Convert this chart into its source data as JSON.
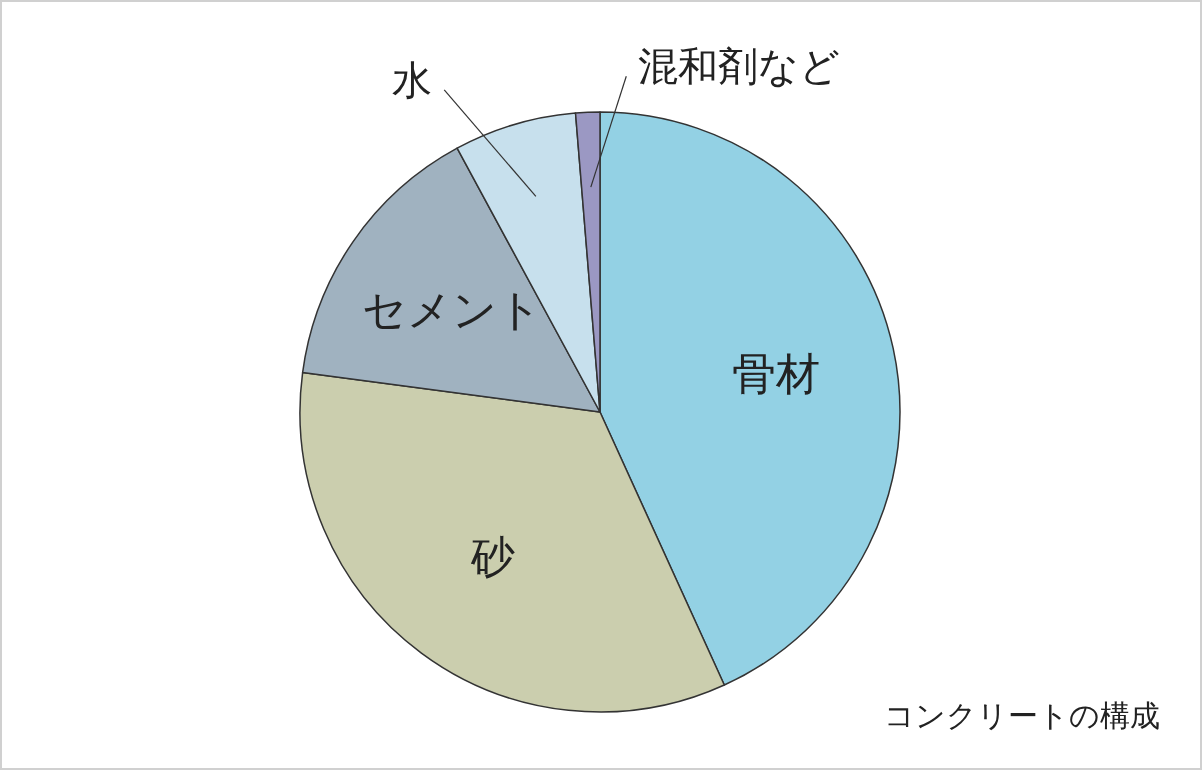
{
  "chart_data": {
    "type": "pie",
    "categories": [
      "骨材",
      "砂",
      "セメント",
      "水",
      "混和剤など"
    ],
    "values": [
      43.2,
      33.9,
      15.0,
      6.6,
      1.3
    ],
    "colors": [
      "#93d1e4",
      "#cbceae",
      "#a0b2c0",
      "#c7e0ed",
      "#9b98c3"
    ],
    "annotations": [
      "コンクリートの構成"
    ]
  }
}
